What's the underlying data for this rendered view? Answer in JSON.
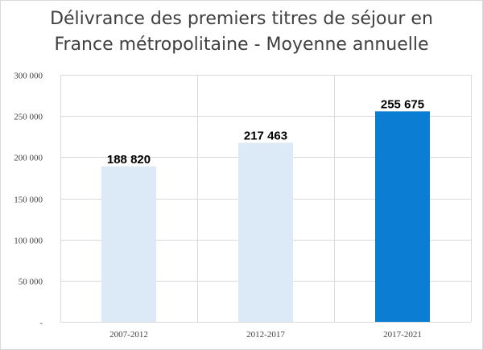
{
  "chart_data": {
    "type": "bar",
    "title_lines": [
      "Délivrance des premiers titres de séjour en",
      "France métropolitaine - Moyenne annuelle"
    ],
    "categories": [
      "2007-2012",
      "2012-2017",
      "2017-2021"
    ],
    "values": [
      188820,
      217463,
      255675
    ],
    "data_labels": [
      "188 820",
      "217 463",
      "255 675"
    ],
    "bar_colors": [
      "#dce9f6",
      "#dce9f6",
      "#0b7dd3"
    ],
    "ylim": [
      0,
      300000
    ],
    "y_ticks": [
      {
        "value": 0,
        "label": "-"
      },
      {
        "value": 50000,
        "label": "50 000"
      },
      {
        "value": 100000,
        "label": "100 000"
      },
      {
        "value": 150000,
        "label": "150 000"
      },
      {
        "value": 200000,
        "label": "200 000"
      },
      {
        "value": 250000,
        "label": "250 000"
      },
      {
        "value": 300000,
        "label": "300 000"
      }
    ],
    "grid": true,
    "legend": "none",
    "xlabel": "",
    "ylabel": ""
  }
}
